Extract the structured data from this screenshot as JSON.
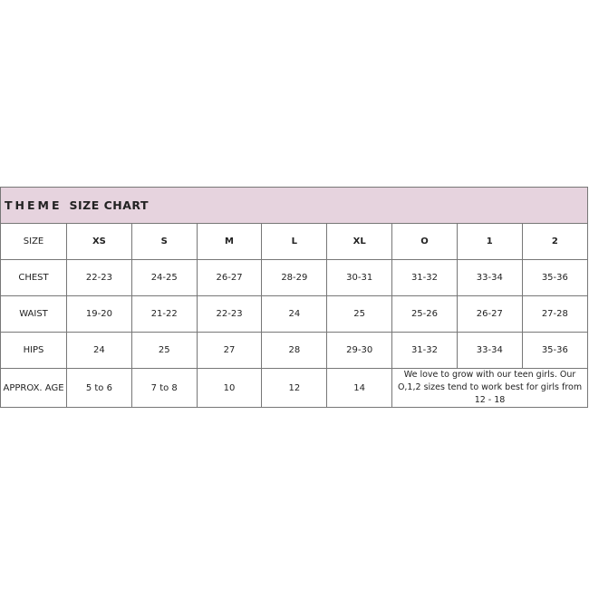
{
  "title": {
    "word1": "THEME",
    "word2": "SIZE CHART"
  },
  "header": {
    "label": "SIZE",
    "sizes": [
      "XS",
      "S",
      "M",
      "L",
      "XL",
      "O",
      "1",
      "2"
    ]
  },
  "rows": [
    {
      "label": "CHEST",
      "values": [
        "22-23",
        "24-25",
        "26-27",
        "28-29",
        "30-31",
        "31-32",
        "33-34",
        "35-36"
      ]
    },
    {
      "label": "WAIST",
      "values": [
        "19-20",
        "21-22",
        "22-23",
        "24",
        "25",
        "25-26",
        "26-27",
        "27-28"
      ]
    },
    {
      "label": "HIPS",
      "values": [
        "24",
        "25",
        "27",
        "28",
        "29-30",
        "31-32",
        "33-34",
        "35-36"
      ]
    }
  ],
  "age": {
    "label": "APPROX. AGE",
    "values": [
      "5 to 6",
      "7 to 8",
      "10",
      "12",
      "14"
    ],
    "note": "We love to grow with our teen girls. Our O,1,2 sizes tend to work best for girls from 12 - 18"
  },
  "colors": {
    "header_band": "#e6d3de",
    "border": "#777777"
  }
}
